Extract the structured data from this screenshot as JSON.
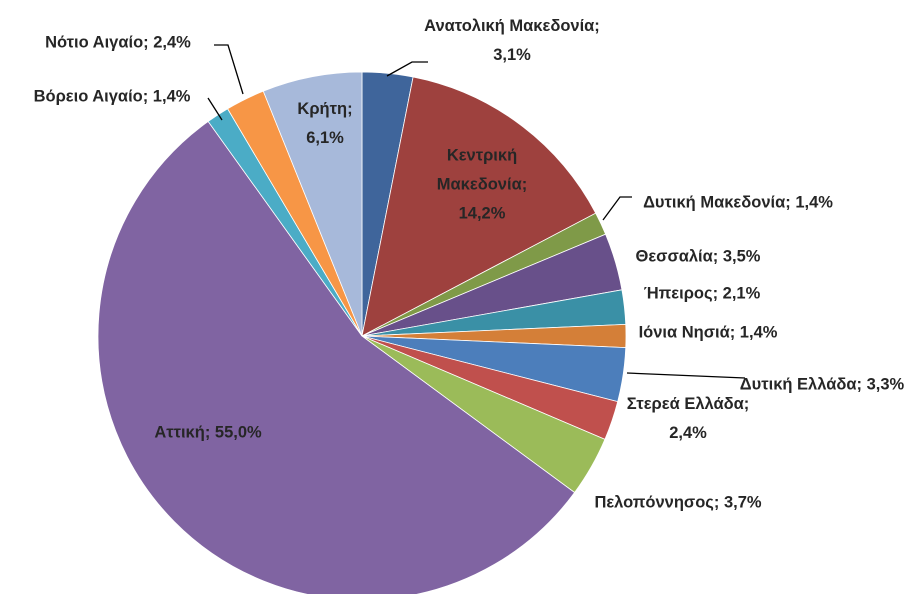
{
  "chart_data": {
    "type": "pie",
    "categories": [
      "Ανατολική Μακεδονία",
      "Κεντρική Μακεδονία",
      "Δυτική Μακεδονία",
      "Θεσσαλία",
      "Ήπειρος",
      "Ιόνια Νησιά",
      "Δυτική Ελλάδα",
      "Στερεά Ελλάδα",
      "Πελοπόννησος",
      "Αττική",
      "Βόρειο Αιγαίο",
      "Νότιο Αιγαίο",
      "Κρήτη"
    ],
    "values": [
      3.1,
      14.2,
      1.4,
      3.5,
      2.1,
      1.4,
      3.3,
      2.4,
      3.7,
      55.0,
      1.4,
      2.4,
      6.1
    ],
    "value_labels": [
      "Ανατολική Μακεδονία; 3,1%",
      "Κεντρική Μακεδονία; 14,2%",
      "Δυτική Μακεδονία; 1,4%",
      "Θεσσαλία; 3,5%",
      "Ήπειρος; 2,1%",
      "Ιόνια Νησιά; 1,4%",
      "Δυτική Ελλάδα; 3,3%",
      "Στερεά Ελλάδα; 2,4%",
      "Πελοπόννησος; 3,7%",
      "Αττική; 55,0%",
      "Βόρειο Αιγαίο; 1,4%",
      "Νότιο Αιγαίο; 2,4%",
      "Κρήτη; 6,1%"
    ],
    "colors": [
      "#3F659B",
      "#9E413E",
      "#7F9A48",
      "#68508A",
      "#3A90A6",
      "#D47F38",
      "#4C7EBB",
      "#C0504D",
      "#9BBB59",
      "#8064A2",
      "#4BACC6",
      "#F79646",
      "#A7B9DA"
    ]
  }
}
